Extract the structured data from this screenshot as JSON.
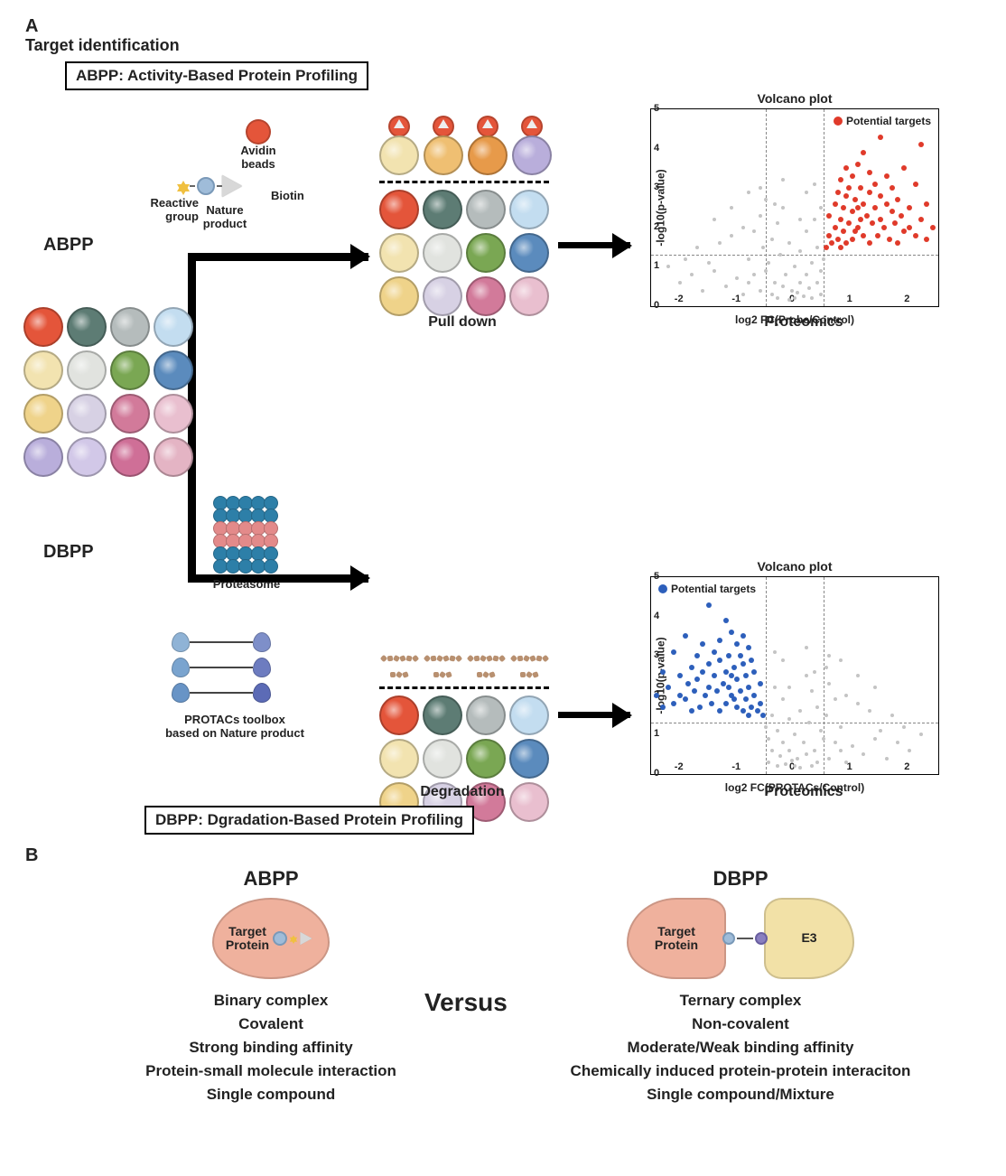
{
  "panelA": {
    "letter": "A",
    "title": "Target identification",
    "abpp_def": "ABPP: Activity-Based Protein Profiling",
    "dbpp_def": "DBPP: Dgradation-Based Protein Profiling",
    "abpp_short": "ABPP",
    "dbpp_short": "DBPP",
    "pull_down": "Pull down",
    "degradation": "Degradation",
    "proteomics": "Proteomics",
    "avidin_label": "Avidin\nbeads",
    "reactive_label": "Reactive\ngroup",
    "np_label": "Nature\nproduct",
    "biotin_label": "Biotin",
    "proteasome_label": "Proteasome",
    "protacs_label": "PROTACs toolbox\nbased on Nature product",
    "avidin_color": "#e4553a",
    "np_ball_color": "#9fbcd9",
    "star_color": "#f0c040",
    "biotin_tri_color": "#d8d8d8",
    "proteasome_colors": {
      "outer": "#2d7fa8",
      "inner": "#e38a8a"
    },
    "protac_ends": [
      [
        "#8fb3d6",
        "#7e8fc9"
      ],
      [
        "#7aa4cf",
        "#6d7cc0"
      ],
      [
        "#6894c6",
        "#5c6bb6"
      ]
    ],
    "proteome_grid_colors": [
      "#e4553a",
      "#5d7c74",
      "#b5bcbc",
      "#c3ddf0",
      "#f2e3b0",
      "#e1e3df",
      "#7aa753",
      "#5b8bbd",
      "#efd38a",
      "#d7d1e4",
      "#d27a9a",
      "#e9bfcf",
      "#b9aedb",
      "#d2c8e8",
      "#cf6f97",
      "#e4b4c4"
    ],
    "pulled_top_colors": [
      "#f2e3b0",
      "#efbf72",
      "#e79a4a",
      "#b9aedb"
    ],
    "grid3_colors": [
      "#e4553a",
      "#5d7c74",
      "#b5bcbc",
      "#c3ddf0",
      "#f2e3b0",
      "#e1e3df",
      "#7aa753",
      "#5b8bbd",
      "#efd38a",
      "#d7d1e4",
      "#d27a9a",
      "#e9bfcf"
    ]
  },
  "volcano_a": {
    "title": "Volcano plot",
    "ylabel": "-log10(p-value)",
    "xlabel": "log2 FC(Probe/Control)",
    "legend": "Potential targets",
    "legend_color": "#e03a2a",
    "grey_color": "#c4c4c4",
    "xlim": [
      -2.5,
      2.5
    ],
    "ylim": [
      0,
      5
    ],
    "xticks": [
      -2,
      -1,
      0,
      1,
      2
    ],
    "yticks": [
      0,
      1,
      2,
      3,
      4,
      5
    ],
    "vlines": [
      -0.5,
      0.5
    ],
    "hline": 1.3,
    "grey_points": [
      [
        -2.2,
        1.0
      ],
      [
        -2.0,
        0.6
      ],
      [
        -1.9,
        1.2
      ],
      [
        -1.8,
        0.8
      ],
      [
        -1.7,
        1.5
      ],
      [
        -1.6,
        0.4
      ],
      [
        -1.5,
        1.1
      ],
      [
        -1.4,
        0.9
      ],
      [
        -1.3,
        1.6
      ],
      [
        -1.2,
        0.5
      ],
      [
        -1.1,
        1.8
      ],
      [
        -1.0,
        0.7
      ],
      [
        -0.9,
        2.0
      ],
      [
        -0.9,
        0.3
      ],
      [
        -0.8,
        1.2
      ],
      [
        -0.8,
        0.6
      ],
      [
        -0.7,
        1.9
      ],
      [
        -0.7,
        0.8
      ],
      [
        -0.6,
        2.3
      ],
      [
        -0.6,
        0.4
      ],
      [
        -0.55,
        1.5
      ],
      [
        -0.5,
        0.9
      ],
      [
        -0.5,
        2.7
      ],
      [
        -0.45,
        1.1
      ],
      [
        -0.4,
        0.3
      ],
      [
        -0.4,
        1.7
      ],
      [
        -0.35,
        0.6
      ],
      [
        -0.3,
        2.1
      ],
      [
        -0.3,
        0.2
      ],
      [
        -0.25,
        1.3
      ],
      [
        -0.2,
        0.5
      ],
      [
        -0.2,
        2.5
      ],
      [
        -0.15,
        0.8
      ],
      [
        -0.1,
        1.6
      ],
      [
        -0.1,
        0.15
      ],
      [
        -0.05,
        0.4
      ],
      [
        0,
        0.2
      ],
      [
        0,
        1.0
      ],
      [
        0.05,
        0.35
      ],
      [
        0.1,
        0.6
      ],
      [
        0.1,
        1.4
      ],
      [
        0.15,
        0.25
      ],
      [
        0.2,
        0.8
      ],
      [
        0.2,
        1.9
      ],
      [
        0.25,
        0.45
      ],
      [
        0.3,
        1.1
      ],
      [
        0.3,
        0.2
      ],
      [
        0.35,
        2.2
      ],
      [
        0.4,
        0.6
      ],
      [
        0.4,
        1.5
      ],
      [
        0.45,
        0.3
      ],
      [
        0.45,
        0.9
      ],
      [
        0.5,
        1.2
      ],
      [
        -1.4,
        2.2
      ],
      [
        -1.1,
        2.5
      ],
      [
        -0.8,
        2.9
      ],
      [
        0.2,
        2.9
      ],
      [
        0.35,
        3.1
      ],
      [
        0.45,
        2.5
      ],
      [
        0.1,
        2.2
      ],
      [
        -0.2,
        3.2
      ],
      [
        -0.35,
        2.6
      ],
      [
        -0.6,
        3.0
      ]
    ],
    "red_points": [
      [
        0.55,
        1.5
      ],
      [
        0.6,
        1.8
      ],
      [
        0.6,
        2.3
      ],
      [
        0.65,
        1.6
      ],
      [
        0.7,
        2.0
      ],
      [
        0.7,
        2.6
      ],
      [
        0.75,
        1.7
      ],
      [
        0.75,
        2.9
      ],
      [
        0.8,
        1.5
      ],
      [
        0.8,
        2.2
      ],
      [
        0.8,
        3.2
      ],
      [
        0.85,
        1.9
      ],
      [
        0.85,
        2.5
      ],
      [
        0.9,
        1.6
      ],
      [
        0.9,
        2.8
      ],
      [
        0.9,
        3.5
      ],
      [
        0.95,
        2.1
      ],
      [
        0.95,
        3.0
      ],
      [
        1.0,
        1.7
      ],
      [
        1.0,
        2.4
      ],
      [
        1.0,
        3.3
      ],
      [
        1.05,
        1.9
      ],
      [
        1.05,
        2.7
      ],
      [
        1.1,
        2.0
      ],
      [
        1.1,
        2.5
      ],
      [
        1.1,
        3.6
      ],
      [
        1.15,
        2.2
      ],
      [
        1.15,
        3.0
      ],
      [
        1.2,
        1.8
      ],
      [
        1.2,
        2.6
      ],
      [
        1.2,
        3.9
      ],
      [
        1.25,
        2.3
      ],
      [
        1.3,
        1.6
      ],
      [
        1.3,
        2.9
      ],
      [
        1.3,
        3.4
      ],
      [
        1.35,
        2.1
      ],
      [
        1.4,
        2.5
      ],
      [
        1.4,
        3.1
      ],
      [
        1.45,
        1.8
      ],
      [
        1.5,
        2.2
      ],
      [
        1.5,
        2.8
      ],
      [
        1.5,
        4.3
      ],
      [
        1.55,
        2.0
      ],
      [
        1.6,
        2.6
      ],
      [
        1.6,
        3.3
      ],
      [
        1.65,
        1.7
      ],
      [
        1.7,
        2.4
      ],
      [
        1.7,
        3.0
      ],
      [
        1.75,
        2.1
      ],
      [
        1.8,
        1.6
      ],
      [
        1.8,
        2.7
      ],
      [
        1.85,
        2.3
      ],
      [
        1.9,
        1.9
      ],
      [
        1.9,
        3.5
      ],
      [
        2.0,
        2.0
      ],
      [
        2.0,
        2.5
      ],
      [
        2.1,
        1.8
      ],
      [
        2.1,
        3.1
      ],
      [
        2.2,
        2.2
      ],
      [
        2.2,
        4.1
      ],
      [
        2.3,
        1.7
      ],
      [
        2.3,
        2.6
      ],
      [
        2.4,
        2.0
      ]
    ]
  },
  "volcano_b": {
    "title": "Volcano plot",
    "ylabel": "-log10(p-value)",
    "xlabel": "log2 FC(PROTACs/Control)",
    "legend": "Potential targets",
    "legend_color": "#2d5fbb",
    "grey_color": "#c4c4c4",
    "xlim": [
      -2.5,
      2.5
    ],
    "ylim": [
      0,
      5
    ],
    "xticks": [
      -2,
      -1,
      0,
      1,
      2
    ],
    "yticks": [
      0,
      1,
      2,
      3,
      4,
      5
    ],
    "vlines": [
      -0.5,
      0.5
    ],
    "hline": 1.3,
    "grey_points": [
      [
        2.2,
        1.0
      ],
      [
        2.0,
        0.6
      ],
      [
        1.9,
        1.2
      ],
      [
        1.8,
        0.8
      ],
      [
        1.7,
        1.5
      ],
      [
        1.6,
        0.4
      ],
      [
        1.5,
        1.1
      ],
      [
        1.4,
        0.9
      ],
      [
        1.3,
        1.6
      ],
      [
        1.2,
        0.5
      ],
      [
        1.1,
        1.8
      ],
      [
        1.0,
        0.7
      ],
      [
        0.9,
        2.0
      ],
      [
        0.9,
        0.3
      ],
      [
        0.8,
        1.2
      ],
      [
        0.8,
        0.6
      ],
      [
        0.7,
        1.9
      ],
      [
        0.7,
        0.8
      ],
      [
        0.6,
        2.3
      ],
      [
        0.6,
        0.4
      ],
      [
        0.55,
        1.5
      ],
      [
        0.5,
        0.9
      ],
      [
        0.45,
        1.1
      ],
      [
        0.4,
        0.3
      ],
      [
        0.4,
        1.7
      ],
      [
        0.35,
        0.6
      ],
      [
        0.3,
        2.1
      ],
      [
        0.3,
        0.2
      ],
      [
        0.25,
        1.3
      ],
      [
        0.2,
        0.5
      ],
      [
        0.2,
        2.5
      ],
      [
        0.15,
        0.8
      ],
      [
        0.1,
        1.6
      ],
      [
        0.1,
        0.15
      ],
      [
        0.05,
        0.4
      ],
      [
        0,
        0.2
      ],
      [
        0,
        1.0
      ],
      [
        -0.05,
        0.35
      ],
      [
        -0.1,
        0.6
      ],
      [
        -0.1,
        1.4
      ],
      [
        -0.15,
        0.25
      ],
      [
        -0.2,
        0.8
      ],
      [
        -0.2,
        1.9
      ],
      [
        -0.25,
        0.45
      ],
      [
        -0.3,
        1.1
      ],
      [
        -0.3,
        0.2
      ],
      [
        -0.35,
        2.2
      ],
      [
        -0.4,
        0.6
      ],
      [
        -0.4,
        1.5
      ],
      [
        -0.45,
        0.3
      ],
      [
        -0.45,
        0.9
      ],
      [
        -0.5,
        1.2
      ],
      [
        1.4,
        2.2
      ],
      [
        1.1,
        2.5
      ],
      [
        0.8,
        2.9
      ],
      [
        -0.2,
        2.9
      ],
      [
        -0.35,
        3.1
      ],
      [
        -0.1,
        2.2
      ],
      [
        0.2,
        3.2
      ],
      [
        0.35,
        2.6
      ],
      [
        0.6,
        3.0
      ],
      [
        0.55,
        2.7
      ]
    ],
    "blue_points": [
      [
        -0.55,
        1.5
      ],
      [
        -0.6,
        1.8
      ],
      [
        -0.6,
        2.3
      ],
      [
        -0.65,
        1.6
      ],
      [
        -0.7,
        2.0
      ],
      [
        -0.7,
        2.6
      ],
      [
        -0.75,
        1.7
      ],
      [
        -0.75,
        2.9
      ],
      [
        -0.8,
        1.5
      ],
      [
        -0.8,
        2.2
      ],
      [
        -0.8,
        3.2
      ],
      [
        -0.85,
        1.9
      ],
      [
        -0.85,
        2.5
      ],
      [
        -0.9,
        1.6
      ],
      [
        -0.9,
        2.8
      ],
      [
        -0.9,
        3.5
      ],
      [
        -0.95,
        2.1
      ],
      [
        -0.95,
        3.0
      ],
      [
        -1.0,
        1.7
      ],
      [
        -1.0,
        2.4
      ],
      [
        -1.0,
        3.3
      ],
      [
        -1.05,
        1.9
      ],
      [
        -1.05,
        2.7
      ],
      [
        -1.1,
        2.0
      ],
      [
        -1.1,
        2.5
      ],
      [
        -1.1,
        3.6
      ],
      [
        -1.15,
        2.2
      ],
      [
        -1.15,
        3.0
      ],
      [
        -1.2,
        1.8
      ],
      [
        -1.2,
        2.6
      ],
      [
        -1.2,
        3.9
      ],
      [
        -1.25,
        2.3
      ],
      [
        -1.3,
        1.6
      ],
      [
        -1.3,
        2.9
      ],
      [
        -1.3,
        3.4
      ],
      [
        -1.35,
        2.1
      ],
      [
        -1.4,
        2.5
      ],
      [
        -1.4,
        3.1
      ],
      [
        -1.45,
        1.8
      ],
      [
        -1.5,
        2.2
      ],
      [
        -1.5,
        2.8
      ],
      [
        -1.5,
        4.3
      ],
      [
        -1.55,
        2.0
      ],
      [
        -1.6,
        2.6
      ],
      [
        -1.6,
        3.3
      ],
      [
        -1.65,
        1.7
      ],
      [
        -1.7,
        2.4
      ],
      [
        -1.7,
        3.0
      ],
      [
        -1.75,
        2.1
      ],
      [
        -1.8,
        1.6
      ],
      [
        -1.8,
        2.7
      ],
      [
        -1.85,
        2.3
      ],
      [
        -1.9,
        1.9
      ],
      [
        -1.9,
        3.5
      ],
      [
        -2.0,
        2.0
      ],
      [
        -2.0,
        2.5
      ],
      [
        -2.1,
        1.8
      ],
      [
        -2.1,
        3.1
      ],
      [
        -2.2,
        2.2
      ],
      [
        -2.3,
        1.7
      ],
      [
        -2.3,
        2.6
      ],
      [
        -2.4,
        2.0
      ]
    ]
  },
  "panelB": {
    "letter": "B",
    "versus": "Versus",
    "abpp": {
      "head": "ABPP",
      "blob_color": "#efb19d",
      "blob_label": "Target\nProtein",
      "props": [
        "Binary complex",
        "Covalent",
        "Strong binding affinity",
        "Protein-small molecule interaction",
        "Single compound"
      ]
    },
    "dbpp": {
      "head": "DBPP",
      "blob1_color": "#efb19d",
      "blob1_label": "Target\nProtein",
      "blob2_color": "#f2e1a7",
      "blob2_label": "E3",
      "props": [
        "Ternary complex",
        "Non-covalent",
        "Moderate/Weak binding affinity",
        "Chemically induced protein-protein interaciton",
        "Single compound/Mixture"
      ]
    }
  }
}
